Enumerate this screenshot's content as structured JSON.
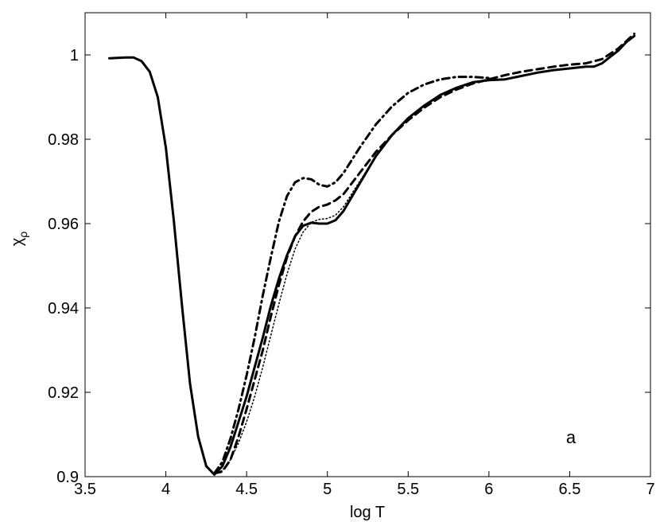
{
  "chart_data": {
    "type": "line",
    "title": "",
    "xlabel": "log T",
    "ylabel": "χρ",
    "ylabel_main": "χ",
    "ylabel_sub": "ρ",
    "annotation": "a",
    "xlim": [
      3.5,
      7
    ],
    "ylim": [
      0.9,
      1.01
    ],
    "xticks": [
      3.5,
      4,
      4.5,
      5,
      5.5,
      6,
      6.5,
      7
    ],
    "xtick_labels": [
      "3.5",
      "4",
      "4.5",
      "5",
      "5.5",
      "6",
      "6.5",
      "7"
    ],
    "yticks": [
      0.9,
      0.92,
      0.94,
      0.96,
      0.98,
      1
    ],
    "ytick_labels": [
      "0.9",
      "0.92",
      "0.94",
      "0.96",
      "0.98",
      "1"
    ],
    "grid": false,
    "series": [
      {
        "style": "solid",
        "x": [
          3.65,
          3.7,
          3.75,
          3.8,
          3.85,
          3.9,
          3.95,
          4.0,
          4.05,
          4.1,
          4.15,
          4.2,
          4.25,
          4.3,
          4.35,
          4.4,
          4.45,
          4.5,
          4.55,
          4.6,
          4.65,
          4.7,
          4.75,
          4.8,
          4.85,
          4.9,
          4.95,
          5.0,
          5.05,
          5.1,
          5.2,
          5.3,
          5.4,
          5.5,
          5.6,
          5.7,
          5.8,
          5.9,
          6.0,
          6.1,
          6.2,
          6.3,
          6.4,
          6.5,
          6.6,
          6.65,
          6.7,
          6.75,
          6.8,
          6.85,
          6.9
        ],
        "y": [
          0.9992,
          0.9993,
          0.9994,
          0.9994,
          0.9985,
          0.996,
          0.99,
          0.978,
          0.9605,
          0.9405,
          0.922,
          0.9095,
          0.9025,
          0.9005,
          0.9025,
          0.907,
          0.913,
          0.919,
          0.926,
          0.933,
          0.9405,
          0.947,
          0.9525,
          0.957,
          0.9595,
          0.9602,
          0.96,
          0.96,
          0.9608,
          0.963,
          0.9695,
          0.976,
          0.981,
          0.985,
          0.988,
          0.9905,
          0.9922,
          0.9935,
          0.994,
          0.9942,
          0.995,
          0.9958,
          0.9964,
          0.9968,
          0.9972,
          0.9972,
          0.998,
          0.9995,
          1.001,
          1.003,
          1.0045
        ]
      },
      {
        "style": "dashed",
        "x": [
          4.3,
          4.35,
          4.4,
          4.45,
          4.5,
          4.55,
          4.6,
          4.65,
          4.7,
          4.75,
          4.8,
          4.85,
          4.9,
          4.95,
          5.0,
          5.05,
          5.1,
          5.2,
          5.3,
          5.4,
          5.5,
          5.6,
          5.7,
          5.8,
          5.9,
          6.0,
          6.1,
          6.2,
          6.3,
          6.4,
          6.5,
          6.6,
          6.7,
          6.8,
          6.9
        ],
        "y": [
          0.9008,
          0.9012,
          0.904,
          0.9095,
          0.916,
          0.923,
          0.93,
          0.938,
          0.9455,
          0.952,
          0.957,
          0.9605,
          0.9628,
          0.964,
          0.9645,
          0.9655,
          0.967,
          0.972,
          0.977,
          0.981,
          0.9845,
          0.9875,
          0.99,
          0.9918,
          0.9932,
          0.9942,
          0.9952,
          0.996,
          0.9966,
          0.9972,
          0.9977,
          0.998,
          0.999,
          1.0015,
          1.005
        ]
      },
      {
        "style": "dashdot",
        "x": [
          4.3,
          4.35,
          4.4,
          4.45,
          4.5,
          4.55,
          4.6,
          4.65,
          4.7,
          4.75,
          4.8,
          4.85,
          4.9,
          4.95,
          5.0,
          5.05,
          5.1,
          5.2,
          5.3,
          5.4,
          5.5,
          5.6,
          5.7,
          5.8,
          5.9,
          6.0
        ],
        "y": [
          0.9008,
          0.9035,
          0.909,
          0.916,
          0.924,
          0.933,
          0.943,
          0.952,
          0.9605,
          0.9665,
          0.9698,
          0.9708,
          0.9705,
          0.9692,
          0.9688,
          0.9698,
          0.972,
          0.978,
          0.9835,
          0.9878,
          0.991,
          0.993,
          0.9942,
          0.9948,
          0.9948,
          0.9945
        ]
      },
      {
        "style": "dotted",
        "x": [
          4.3,
          4.35,
          4.4,
          4.45,
          4.5,
          4.55,
          4.6,
          4.65,
          4.7,
          4.75,
          4.8,
          4.85,
          4.9,
          4.95,
          5.0,
          5.05,
          5.1,
          5.2,
          5.3,
          5.4,
          5.5,
          5.6
        ],
        "y": [
          0.9005,
          0.9015,
          0.904,
          0.908,
          0.913,
          0.919,
          0.926,
          0.9335,
          0.941,
          0.948,
          0.954,
          0.958,
          0.9603,
          0.961,
          0.9612,
          0.962,
          0.964,
          0.97,
          0.976,
          0.981,
          0.985,
          0.988
        ]
      }
    ]
  }
}
